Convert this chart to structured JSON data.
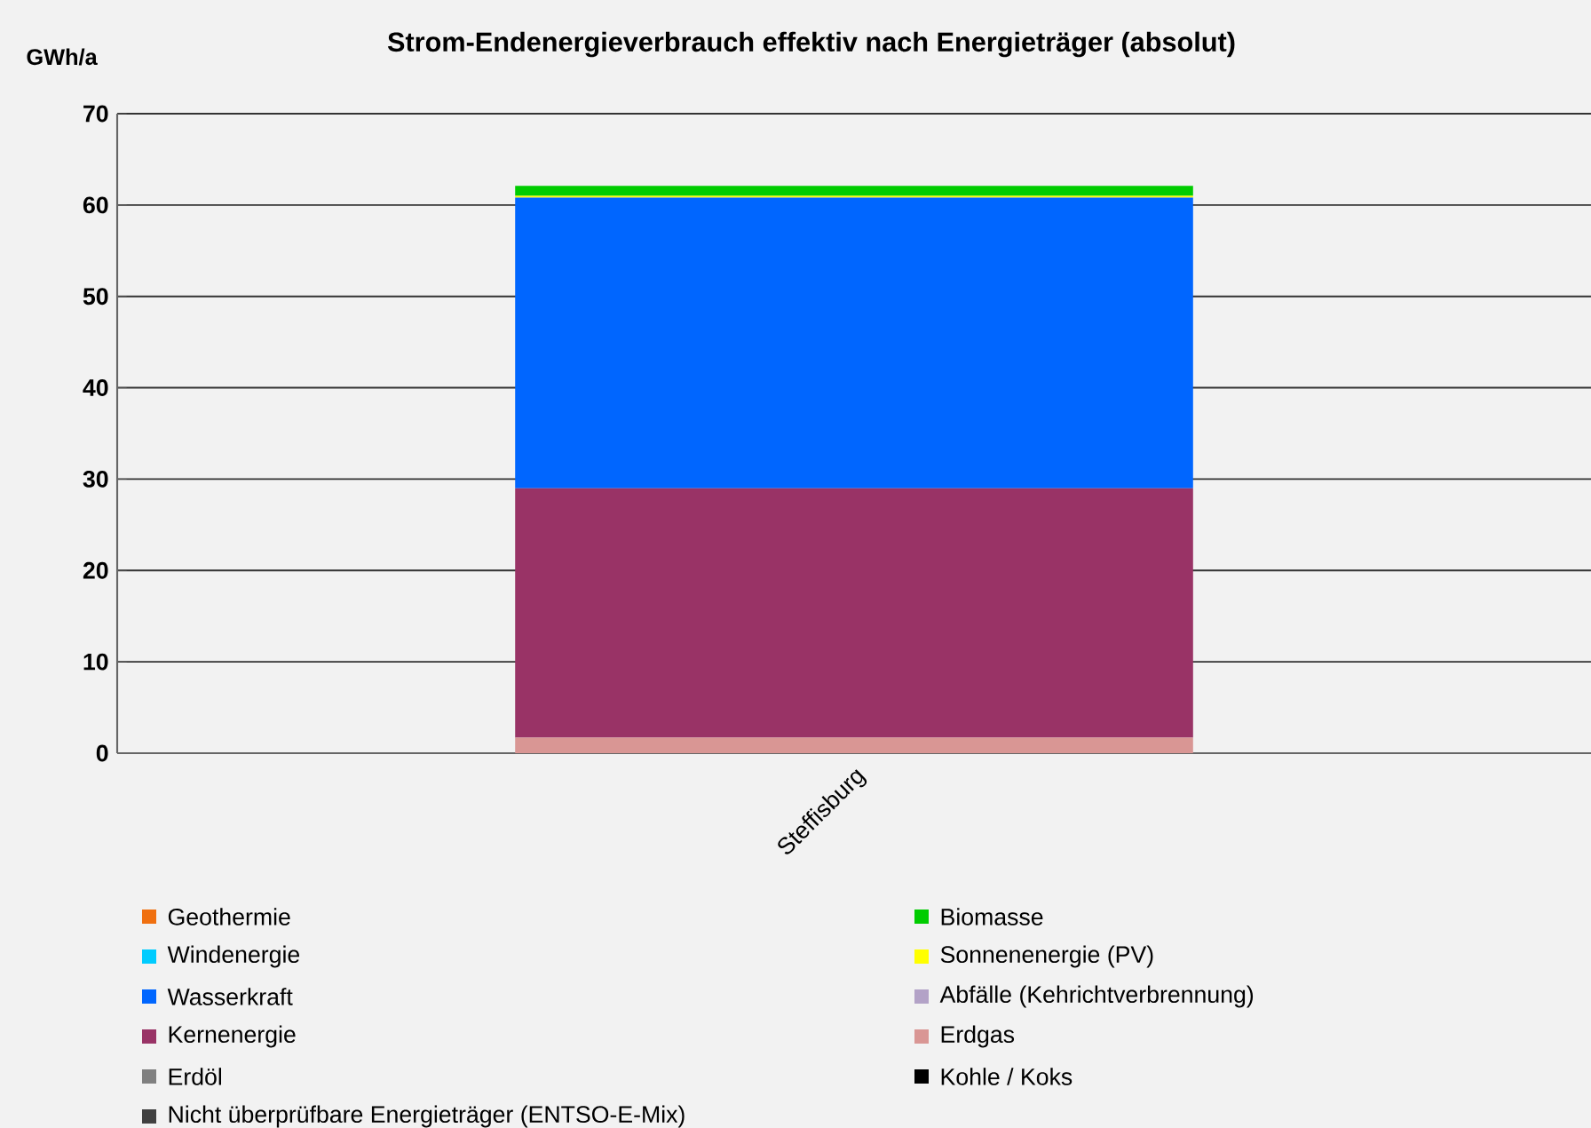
{
  "chart_data": {
    "type": "bar",
    "title": "Strom-Endenergieverbrauch effektiv nach Energieträger (absolut)",
    "ylabel": "GWh/a",
    "categories": [
      "Steffisburg"
    ],
    "stacked": true,
    "ylim": [
      0,
      70
    ],
    "yticks": [
      0,
      10,
      20,
      30,
      40,
      50,
      60,
      70
    ],
    "grid": "y",
    "legend": "bottom",
    "series": [
      {
        "name": "Nicht überprüfbare Energieträger (ENTSO-E-Mix)",
        "color": "#404040",
        "values": [
          0
        ]
      },
      {
        "name": "Kohle / Koks",
        "color": "#000000",
        "values": [
          0
        ]
      },
      {
        "name": "Erdöl",
        "color": "#808080",
        "values": [
          0
        ]
      },
      {
        "name": "Erdgas",
        "color": "#d99694",
        "values": [
          1.7
        ]
      },
      {
        "name": "Kernenergie",
        "color": "#993366",
        "values": [
          27.3
        ]
      },
      {
        "name": "Abfälle (Kehrichtverbrennung)",
        "color": "#b3a2c7",
        "values": [
          0
        ]
      },
      {
        "name": "Wasserkraft",
        "color": "#0066ff",
        "values": [
          31.8
        ]
      },
      {
        "name": "Sonnenenergie (PV)",
        "color": "#ffff00",
        "values": [
          0.2
        ]
      },
      {
        "name": "Windenergie",
        "color": "#00ccff",
        "values": [
          0
        ]
      },
      {
        "name": "Biomasse",
        "color": "#00cc00",
        "values": [
          1.1
        ]
      },
      {
        "name": "Geothermie",
        "color": "#f07010",
        "values": [
          0
        ]
      }
    ]
  }
}
